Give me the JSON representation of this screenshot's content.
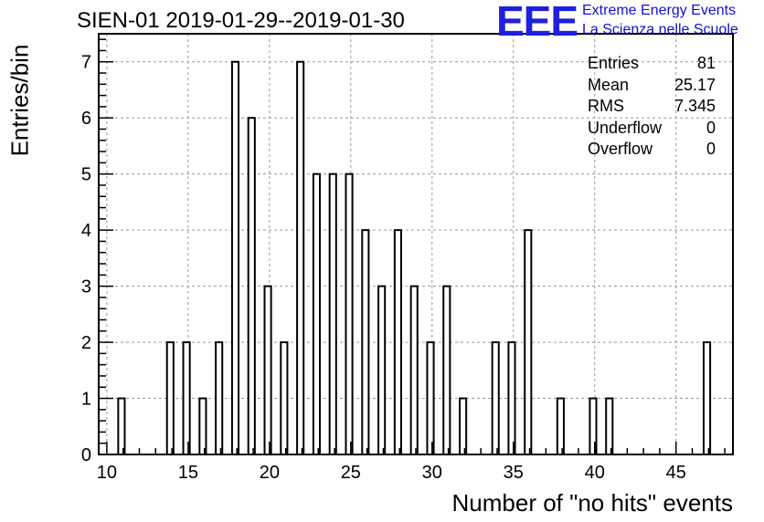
{
  "header": {
    "title": "SIEN-01 2019-01-29--2019-01-30",
    "logo": {
      "mark": "EEE",
      "line1": "Extreme Energy Events",
      "line2": "La Scienza nelle Scuole"
    }
  },
  "stats": [
    {
      "label": "Entries",
      "value": "81"
    },
    {
      "label": "Mean",
      "value": "25.17"
    },
    {
      "label": "RMS",
      "value": "7.345"
    },
    {
      "label": "Underflow",
      "value": "0"
    },
    {
      "label": "Overflow",
      "value": "0"
    }
  ],
  "chart_data": {
    "type": "bar",
    "title": "SIEN-01 2019-01-29--2019-01-30",
    "xlabel": "Number of \"no hits\" events",
    "ylabel": "Entries/bin",
    "xlim": [
      9.5,
      48.5
    ],
    "ylim": [
      0,
      7.5
    ],
    "grid": true,
    "x_ticks": [
      10,
      15,
      20,
      25,
      30,
      35,
      40,
      45
    ],
    "y_ticks": [
      0,
      1,
      2,
      3,
      4,
      5,
      6,
      7
    ],
    "bins": [
      {
        "x": 11,
        "y": 1
      },
      {
        "x": 14,
        "y": 2
      },
      {
        "x": 15,
        "y": 2
      },
      {
        "x": 16,
        "y": 1
      },
      {
        "x": 17,
        "y": 2
      },
      {
        "x": 18,
        "y": 7
      },
      {
        "x": 19,
        "y": 6
      },
      {
        "x": 20,
        "y": 3
      },
      {
        "x": 21,
        "y": 2
      },
      {
        "x": 22,
        "y": 7
      },
      {
        "x": 23,
        "y": 5
      },
      {
        "x": 24,
        "y": 5
      },
      {
        "x": 25,
        "y": 5
      },
      {
        "x": 26,
        "y": 4
      },
      {
        "x": 27,
        "y": 3
      },
      {
        "x": 28,
        "y": 4
      },
      {
        "x": 29,
        "y": 3
      },
      {
        "x": 30,
        "y": 2
      },
      {
        "x": 31,
        "y": 3
      },
      {
        "x": 32,
        "y": 1
      },
      {
        "x": 34,
        "y": 2
      },
      {
        "x": 35,
        "y": 2
      },
      {
        "x": 36,
        "y": 4
      },
      {
        "x": 38,
        "y": 1
      },
      {
        "x": 40,
        "y": 1
      },
      {
        "x": 41,
        "y": 1
      },
      {
        "x": 47,
        "y": 2
      }
    ]
  }
}
